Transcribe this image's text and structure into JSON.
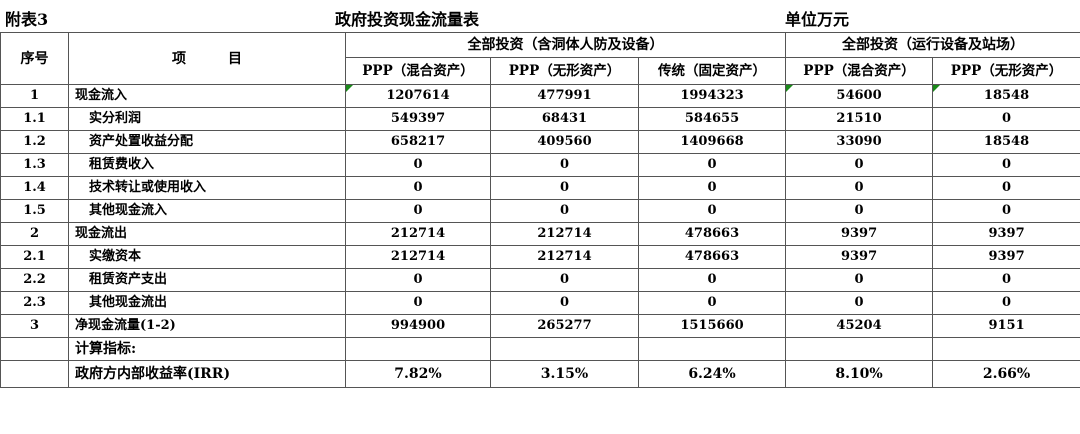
{
  "title": {
    "left": "附表3",
    "center": "政府投资现金流量表",
    "unit": "单位万元"
  },
  "header": {
    "seq": "序号",
    "item": "项　　　目",
    "group1": "全部投资（含洞体人防及设备）",
    "group2": "全部投资（运行设备及站场）",
    "columns": [
      "PPP（混合资产）",
      "PPP（无形资产）",
      "传统（固定资产）",
      "PPP（混合资产）",
      "PPP（无形资产）"
    ]
  },
  "rows": [
    {
      "seq": "1",
      "item": "现金流入",
      "level": 0,
      "values": [
        "1207614",
        "477991",
        "1994323",
        "54600",
        "18548"
      ],
      "marked": [
        true,
        false,
        false,
        true,
        true
      ]
    },
    {
      "seq": "1.1",
      "item": "实分利润",
      "level": 1,
      "values": [
        "549397",
        "68431",
        "584655",
        "21510",
        "0"
      ]
    },
    {
      "seq": "1.2",
      "item": "资产处置收益分配",
      "level": 1,
      "values": [
        "658217",
        "409560",
        "1409668",
        "33090",
        "18548"
      ]
    },
    {
      "seq": "1.3",
      "item": "租赁费收入",
      "level": 1,
      "values": [
        "0",
        "0",
        "0",
        "0",
        "0"
      ]
    },
    {
      "seq": "1.4",
      "item": "技术转让或使用收入",
      "level": 1,
      "values": [
        "0",
        "0",
        "0",
        "0",
        "0"
      ]
    },
    {
      "seq": "1.5",
      "item": "其他现金流入",
      "level": 1,
      "values": [
        "0",
        "0",
        "0",
        "0",
        "0"
      ]
    },
    {
      "seq": "2",
      "item": "现金流出",
      "level": 0,
      "values": [
        "212714",
        "212714",
        "478663",
        "9397",
        "9397"
      ]
    },
    {
      "seq": "2.1",
      "item": "实缴资本",
      "level": 1,
      "values": [
        "212714",
        "212714",
        "478663",
        "9397",
        "9397"
      ]
    },
    {
      "seq": "2.2",
      "item": "租赁资产支出",
      "level": 1,
      "values": [
        "0",
        "0",
        "0",
        "0",
        "0"
      ]
    },
    {
      "seq": "2.3",
      "item": "其他现金流出",
      "level": 1,
      "values": [
        "0",
        "0",
        "0",
        "0",
        "0"
      ]
    },
    {
      "seq": "3",
      "item": "净现金流量(1-2)",
      "level": 0,
      "values": [
        "994900",
        "265277",
        "1515660",
        "45204",
        "9151"
      ]
    },
    {
      "seq": "",
      "item": "计算指标:",
      "level": 2,
      "values": [
        "",
        "",
        "",
        "",
        ""
      ]
    },
    {
      "seq": "",
      "item": "政府方内部收益率(IRR)",
      "level": 2,
      "values": [
        "7.82%",
        "3.15%",
        "6.24%",
        "8.10%",
        "2.66%"
      ],
      "irr": true
    }
  ],
  "colors": {
    "border": "#555555",
    "comment_marker": "#1a8a1a"
  }
}
